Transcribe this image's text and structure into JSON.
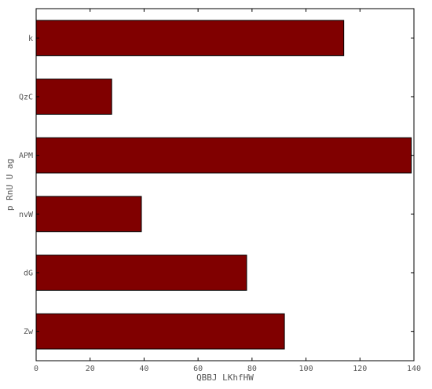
{
  "chart_data": {
    "type": "bar",
    "orientation": "horizontal",
    "categories": [
      "k",
      "QzC",
      "APM",
      "nvW",
      "dG",
      "Zw"
    ],
    "values": [
      114,
      28,
      139,
      39,
      78,
      92
    ],
    "xlabel": "QBBJ LKhfHW",
    "ylabel": "p RnU U ag",
    "xlim": [
      0,
      140
    ],
    "xticks": [
      0,
      20,
      40,
      60,
      80,
      100,
      120,
      140
    ],
    "grid": false,
    "bar_color": "#800000",
    "edge_color": "#000000"
  }
}
